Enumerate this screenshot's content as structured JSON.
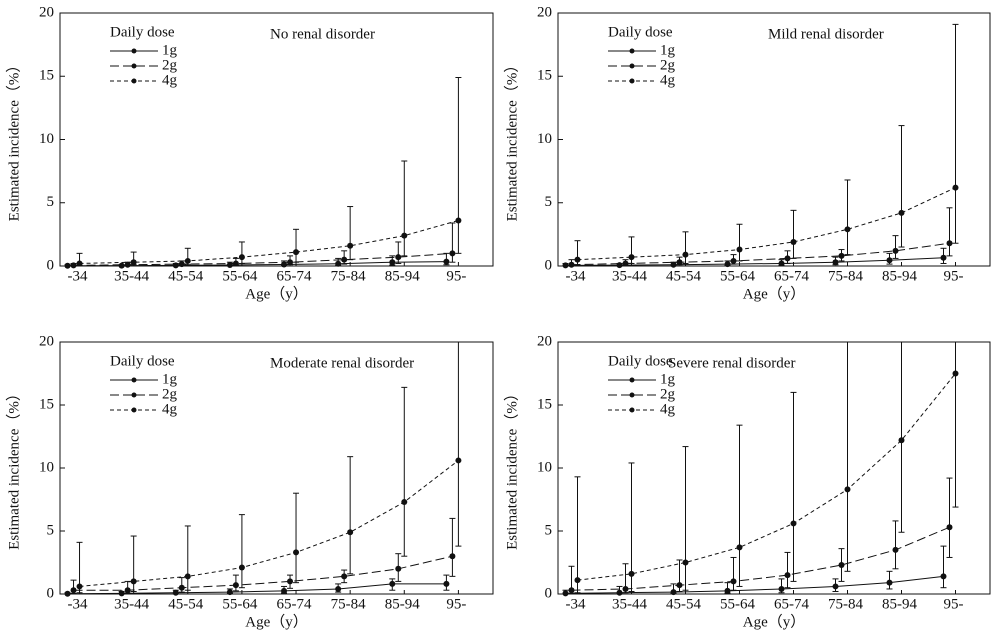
{
  "chart_data": [
    {
      "type": "line",
      "title": "No renal disorder",
      "x_label": "Age（y）",
      "y_label": "Estimated incidence（%）",
      "legend_title": "Daily dose",
      "categories": [
        "-34",
        "35-44",
        "45-54",
        "55-64",
        "65-74",
        "75-84",
        "85-94",
        "95-"
      ],
      "ylim": [
        0,
        20
      ],
      "yticks": [
        0,
        5,
        10,
        15,
        20
      ],
      "series": [
        {
          "name": "1g",
          "color": "#111111",
          "dash": "solid",
          "values": [
            0.02,
            0.03,
            0.05,
            0.08,
            0.12,
            0.18,
            0.3,
            0.35
          ],
          "lower": [
            0,
            0,
            0.01,
            0.02,
            0.03,
            0.05,
            0.08,
            0.1
          ],
          "upper": [
            0.1,
            0.1,
            0.2,
            0.3,
            0.4,
            0.6,
            0.8,
            1.0
          ]
        },
        {
          "name": "2g",
          "color": "#111111",
          "dash": "long",
          "values": [
            0.05,
            0.1,
            0.15,
            0.2,
            0.3,
            0.5,
            0.7,
            1.0
          ],
          "lower": [
            0.01,
            0.02,
            0.04,
            0.06,
            0.1,
            0.15,
            0.2,
            0.3
          ],
          "upper": [
            0.2,
            0.3,
            0.4,
            0.6,
            0.8,
            1.2,
            1.9,
            3.4
          ]
        },
        {
          "name": "4g",
          "color": "#111111",
          "dash": "short",
          "values": [
            0.2,
            0.3,
            0.4,
            0.7,
            1.1,
            1.6,
            2.4,
            3.6
          ],
          "lower": [
            0.05,
            0.1,
            0.1,
            0.2,
            0.3,
            0.5,
            0.8,
            1.0
          ],
          "upper": [
            1.0,
            1.1,
            1.4,
            1.9,
            2.9,
            4.7,
            8.3,
            14.9
          ]
        }
      ]
    },
    {
      "type": "line",
      "title": "Mild renal disorder",
      "x_label": "Age（y）",
      "y_label": "Estimated incidence（%）",
      "legend_title": "Daily dose",
      "categories": [
        "-34",
        "35-44",
        "45-54",
        "55-64",
        "65-74",
        "75-84",
        "85-94",
        "95-"
      ],
      "ylim": [
        0,
        20
      ],
      "yticks": [
        0,
        5,
        10,
        15,
        20
      ],
      "series": [
        {
          "name": "1g",
          "color": "#111111",
          "dash": "solid",
          "values": [
            0.05,
            0.07,
            0.1,
            0.15,
            0.2,
            0.3,
            0.45,
            0.65
          ],
          "lower": [
            0.01,
            0.02,
            0.03,
            0.04,
            0.06,
            0.1,
            0.15,
            0.2
          ],
          "upper": [
            0.2,
            0.2,
            0.3,
            0.4,
            0.5,
            0.7,
            1.0,
            1.4
          ]
        },
        {
          "name": "2g",
          "color": "#111111",
          "dash": "long",
          "values": [
            0.1,
            0.2,
            0.3,
            0.4,
            0.6,
            0.8,
            1.2,
            1.8
          ],
          "lower": [
            0.03,
            0.06,
            0.1,
            0.15,
            0.2,
            0.4,
            0.6,
            0.8
          ],
          "upper": [
            0.5,
            0.5,
            0.7,
            0.9,
            1.2,
            1.3,
            2.4,
            4.6
          ]
        },
        {
          "name": "4g",
          "color": "#111111",
          "dash": "short",
          "values": [
            0.5,
            0.7,
            0.9,
            1.3,
            1.9,
            2.9,
            4.2,
            6.2
          ],
          "lower": [
            0.1,
            0.2,
            0.2,
            0.4,
            0.6,
            0.9,
            1.5,
            1.8
          ],
          "upper": [
            2.0,
            2.3,
            2.7,
            3.3,
            4.4,
            6.8,
            11.1,
            19.1
          ]
        }
      ]
    },
    {
      "type": "line",
      "title": "Moderate renal disorder",
      "x_label": "Age（y）",
      "y_label": "Estimated incidence（%）",
      "legend_title": "Daily dose",
      "categories": [
        "-34",
        "35-44",
        "45-54",
        "55-64",
        "65-74",
        "75-84",
        "85-94",
        "95-"
      ],
      "ylim": [
        0,
        20
      ],
      "yticks": [
        0,
        5,
        10,
        15,
        20
      ],
      "series": [
        {
          "name": "1g",
          "color": "#111111",
          "dash": "solid",
          "values": [
            0.02,
            0.05,
            0.1,
            0.15,
            0.25,
            0.4,
            0.8,
            0.8
          ],
          "lower": [
            0,
            0.01,
            0.03,
            0.05,
            0.08,
            0.15,
            0.3,
            0.3
          ],
          "upper": [
            0.1,
            0.2,
            0.3,
            0.4,
            0.6,
            0.8,
            1.2,
            1.5
          ]
        },
        {
          "name": "2g",
          "color": "#111111",
          "dash": "long",
          "values": [
            0.3,
            0.3,
            0.5,
            0.7,
            1.0,
            1.4,
            2.0,
            3.0
          ],
          "lower": [
            0.05,
            0.08,
            0.15,
            0.25,
            0.45,
            0.9,
            1.0,
            1.4
          ],
          "upper": [
            1.1,
            1.0,
            1.3,
            1.5,
            1.5,
            1.9,
            3.2,
            6.0
          ]
        },
        {
          "name": "4g",
          "color": "#111111",
          "dash": "short",
          "values": [
            0.6,
            1.0,
            1.4,
            2.1,
            3.3,
            4.9,
            7.3,
            10.6
          ],
          "lower": [
            0.1,
            0.2,
            0.3,
            0.5,
            0.9,
            1.6,
            3.0,
            3.8
          ],
          "upper": [
            4.1,
            4.6,
            5.4,
            6.3,
            8.0,
            10.9,
            16.4,
            20
          ]
        }
      ]
    },
    {
      "type": "line",
      "title": "Severe renal disorder",
      "x_label": "Age（y）",
      "y_label": "Estimated incidence（%）",
      "legend_title": "Daily dose",
      "categories": [
        "-34",
        "35-44",
        "45-54",
        "55-64",
        "65-74",
        "75-84",
        "85-94",
        "95-"
      ],
      "ylim": [
        0,
        20
      ],
      "yticks": [
        0,
        5,
        10,
        15,
        20
      ],
      "series": [
        {
          "name": "1g",
          "color": "#111111",
          "dash": "solid",
          "values": [
            0.05,
            0.1,
            0.15,
            0.25,
            0.4,
            0.6,
            0.9,
            1.4
          ],
          "lower": [
            0,
            0.02,
            0.04,
            0.08,
            0.1,
            0.2,
            0.4,
            0.5
          ],
          "upper": [
            0.3,
            0.6,
            0.8,
            0.9,
            1.2,
            1.2,
            1.8,
            3.8
          ]
        },
        {
          "name": "2g",
          "color": "#111111",
          "dash": "long",
          "values": [
            0.3,
            0.4,
            0.7,
            1.0,
            1.5,
            2.3,
            3.5,
            5.3
          ],
          "lower": [
            0.05,
            0.1,
            0.2,
            0.3,
            0.5,
            1.0,
            2.0,
            2.9
          ],
          "upper": [
            2.2,
            2.4,
            2.7,
            2.9,
            3.3,
            3.6,
            5.8,
            9.2
          ]
        },
        {
          "name": "4g",
          "color": "#111111",
          "dash": "short",
          "values": [
            1.1,
            1.6,
            2.5,
            3.7,
            5.6,
            8.3,
            12.2,
            17.5
          ],
          "lower": [
            0.1,
            0.2,
            0.3,
            0.6,
            1.0,
            1.8,
            4.9,
            6.9
          ],
          "upper": [
            9.3,
            10.4,
            11.7,
            13.4,
            16.0,
            20,
            20,
            20
          ]
        }
      ]
    }
  ]
}
